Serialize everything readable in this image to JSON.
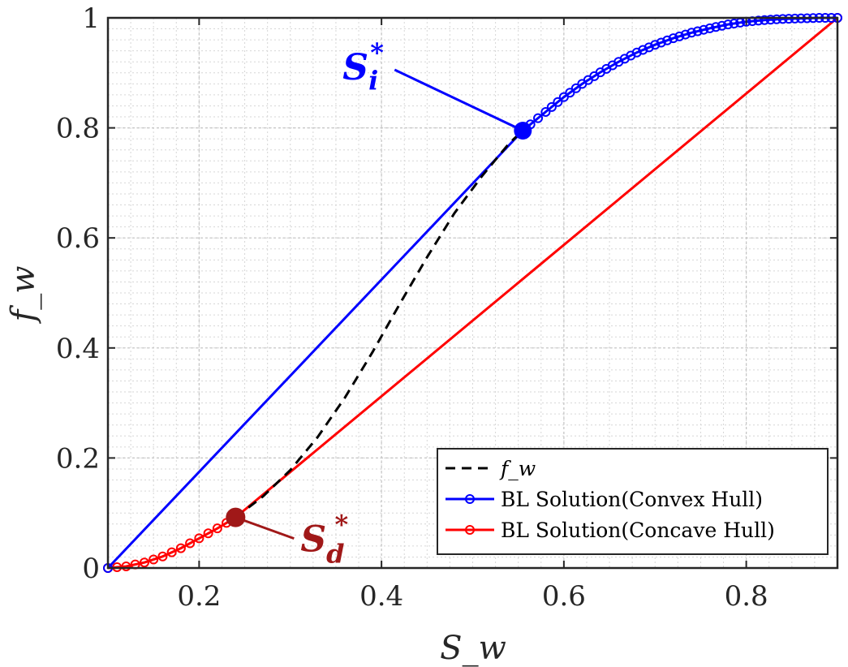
{
  "chart_data": {
    "type": "line",
    "title": "",
    "xlabel": "S_w",
    "ylabel": "f_w",
    "xlim": [
      0.1,
      0.9
    ],
    "ylim": [
      0,
      1
    ],
    "x_ticks": [
      0.2,
      0.4,
      0.6,
      0.8
    ],
    "x_tick_labels": [
      "0.2",
      "0.4",
      "0.6",
      "0.8"
    ],
    "y_ticks": [
      0,
      0.2,
      0.4,
      0.6,
      0.8,
      1
    ],
    "y_tick_labels": [
      "0",
      "0.2",
      "0.4",
      "0.6",
      "0.8",
      "1"
    ],
    "grid": true,
    "minor_grid": true,
    "legend_position": "bottom-right",
    "series": [
      {
        "name": "f_w",
        "style": "dashed",
        "color": "#000000",
        "x": [
          0.24,
          0.27,
          0.3,
          0.33,
          0.36,
          0.39,
          0.42,
          0.45,
          0.48,
          0.51,
          0.54,
          0.555
        ],
        "y": [
          0.092,
          0.13,
          0.178,
          0.238,
          0.31,
          0.392,
          0.48,
          0.565,
          0.645,
          0.712,
          0.772,
          0.795
        ]
      },
      {
        "name": "BL Solution(Convex Hull)",
        "style": "solid-markers",
        "color": "#0000ff",
        "x": [
          0.1,
          0.555,
          0.58,
          0.6,
          0.62,
          0.64,
          0.66,
          0.68,
          0.7,
          0.72,
          0.74,
          0.76,
          0.78,
          0.8,
          0.82,
          0.84,
          0.86,
          0.88,
          0.9
        ],
        "y": [
          0.0,
          0.795,
          0.829,
          0.856,
          0.88,
          0.901,
          0.92,
          0.937,
          0.951,
          0.963,
          0.973,
          0.981,
          0.988,
          0.993,
          0.996,
          0.998,
          0.999,
          1.0,
          1.0
        ]
      },
      {
        "name": "BL Solution(Concave Hull)",
        "style": "solid-markers",
        "color": "#ff0000",
        "x": [
          0.1,
          0.12,
          0.14,
          0.16,
          0.18,
          0.2,
          0.22,
          0.24,
          0.9
        ],
        "y": [
          0.0,
          0.003,
          0.01,
          0.021,
          0.036,
          0.054,
          0.072,
          0.092,
          1.0
        ]
      }
    ],
    "annotations": [
      {
        "label": "S",
        "subscript": "i",
        "superscript": "*",
        "color": "#0000ff",
        "x": 0.555,
        "y": 0.795
      },
      {
        "label": "S",
        "subscript": "d",
        "superscript": "*",
        "color": "#a01818",
        "x": 0.24,
        "y": 0.092
      }
    ]
  }
}
